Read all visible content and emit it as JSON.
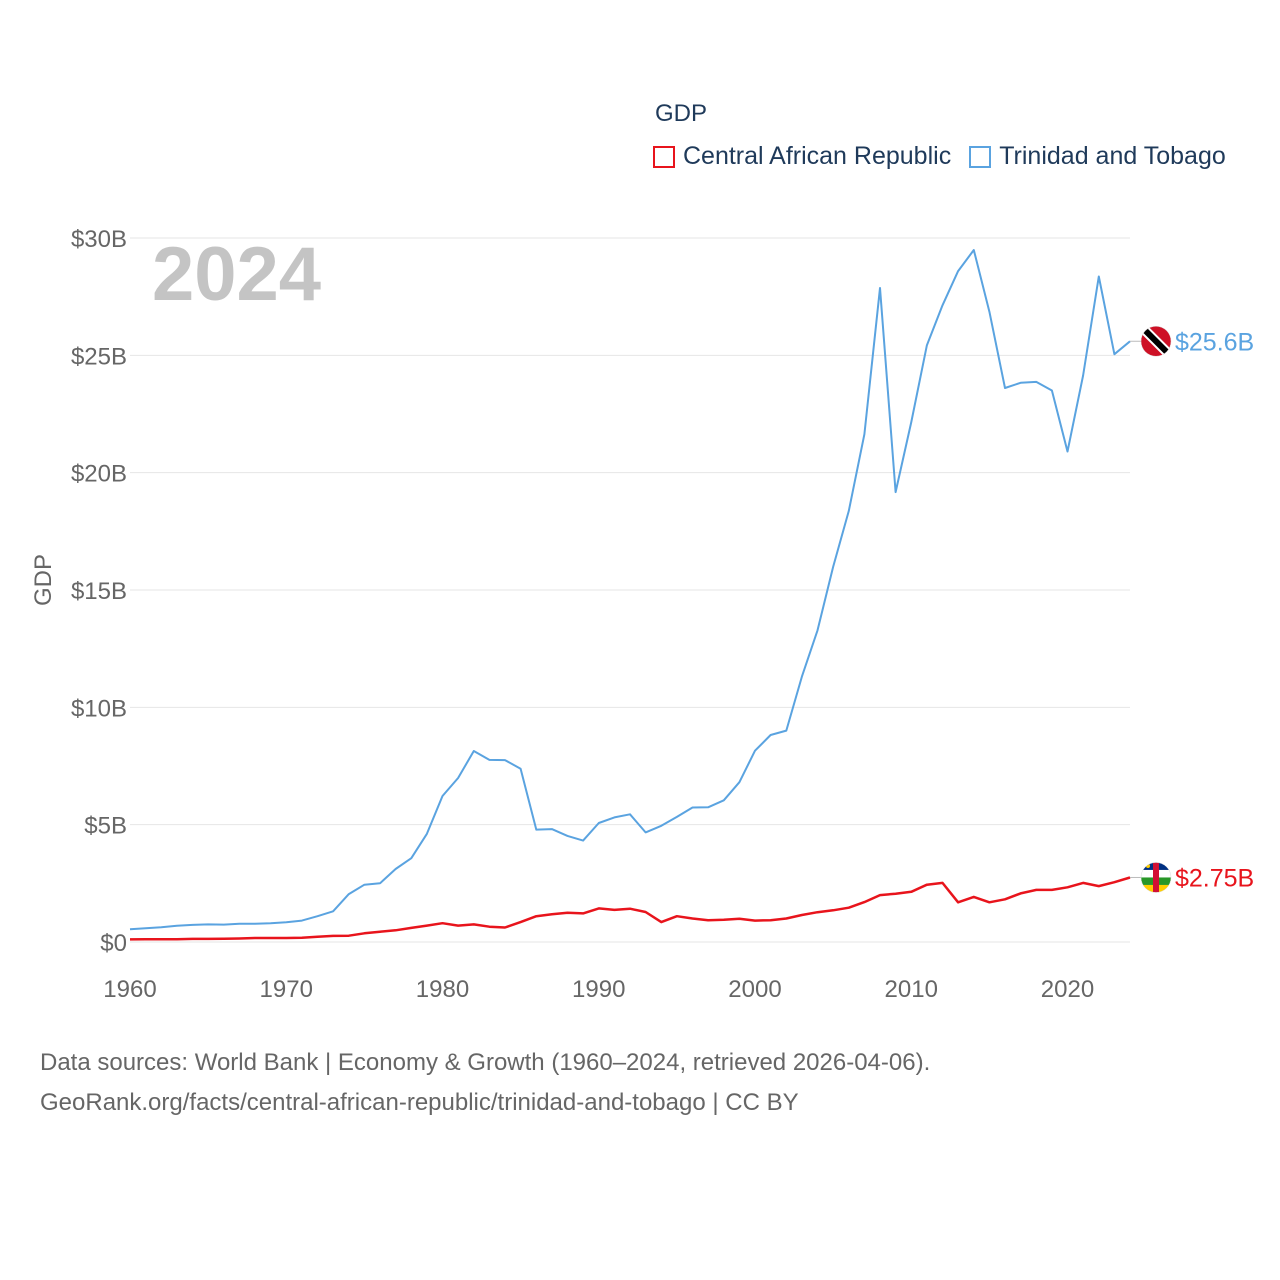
{
  "chart_data": {
    "type": "line",
    "title": "GDP",
    "year_label": "2024",
    "ylabel": "GDP",
    "xlabel": "",
    "xlim": [
      1960,
      2024
    ],
    "ylim": [
      0,
      30000000000
    ],
    "x_ticks": [
      1960,
      1970,
      1980,
      1990,
      2000,
      2010,
      2020
    ],
    "y_ticks": [
      {
        "value": 0,
        "label": "$0"
      },
      {
        "value": 5000000000,
        "label": "$5B"
      },
      {
        "value": 10000000000,
        "label": "$10B"
      },
      {
        "value": 15000000000,
        "label": "$15B"
      },
      {
        "value": 20000000000,
        "label": "$20B"
      },
      {
        "value": 25000000000,
        "label": "$25B"
      },
      {
        "value": 30000000000,
        "label": "$30B"
      }
    ],
    "x": [
      1960,
      1961,
      1962,
      1963,
      1964,
      1965,
      1966,
      1967,
      1968,
      1969,
      1970,
      1971,
      1972,
      1973,
      1974,
      1975,
      1976,
      1977,
      1978,
      1979,
      1980,
      1981,
      1982,
      1983,
      1984,
      1985,
      1986,
      1987,
      1988,
      1989,
      1990,
      1991,
      1992,
      1993,
      1994,
      1995,
      1996,
      1997,
      1998,
      1999,
      2000,
      2001,
      2002,
      2003,
      2004,
      2005,
      2006,
      2007,
      2008,
      2009,
      2010,
      2011,
      2012,
      2013,
      2014,
      2015,
      2016,
      2017,
      2018,
      2019,
      2020,
      2021,
      2022,
      2023,
      2024
    ],
    "series": [
      {
        "name": "Central African Republic",
        "color": "#e8141c",
        "end_label": "$2.75B",
        "flag": "central-african-republic-flag-icon",
        "values": [
          0.11,
          0.12,
          0.12,
          0.12,
          0.13,
          0.13,
          0.14,
          0.15,
          0.17,
          0.17,
          0.17,
          0.18,
          0.22,
          0.26,
          0.27,
          0.37,
          0.44,
          0.5,
          0.6,
          0.7,
          0.8,
          0.7,
          0.75,
          0.65,
          0.62,
          0.85,
          1.1,
          1.18,
          1.25,
          1.22,
          1.43,
          1.37,
          1.42,
          1.28,
          0.85,
          1.1,
          1.0,
          0.93,
          0.95,
          0.99,
          0.91,
          0.93,
          1.0,
          1.15,
          1.27,
          1.35,
          1.46,
          1.7,
          2.0,
          2.06,
          2.14,
          2.44,
          2.52,
          1.69,
          1.92,
          1.69,
          1.82,
          2.07,
          2.22,
          2.22,
          2.33,
          2.52,
          2.38,
          2.55,
          2.75
        ]
      },
      {
        "name": "Trinidad and Tobago",
        "color": "#5aa3e0",
        "end_label": "$25.6B",
        "flag": "trinidad-and-tobago-flag-icon",
        "values": [
          0.54,
          0.59,
          0.63,
          0.69,
          0.73,
          0.75,
          0.74,
          0.78,
          0.78,
          0.8,
          0.84,
          0.91,
          1.1,
          1.31,
          2.04,
          2.44,
          2.5,
          3.11,
          3.57,
          4.61,
          6.22,
          6.99,
          8.14,
          7.76,
          7.75,
          7.38,
          4.79,
          4.81,
          4.52,
          4.32,
          5.07,
          5.31,
          5.44,
          4.67,
          4.95,
          5.33,
          5.73,
          5.74,
          6.04,
          6.81,
          8.15,
          8.82,
          9.01,
          11.31,
          13.28,
          15.98,
          18.37,
          21.64,
          27.87,
          19.17,
          22.16,
          25.43,
          27.13,
          28.59,
          29.49,
          26.86,
          23.61,
          23.83,
          23.87,
          23.5,
          20.9,
          24.14,
          28.36,
          25.05,
          25.6
        ]
      }
    ]
  },
  "footer": {
    "line1": "Data sources: World Bank | Economy & Growth (1960–2024, retrieved 2026-04-06).",
    "line2": "GeoRank.org/facts/central-african-republic/trinidad-and-tobago | CC BY"
  }
}
